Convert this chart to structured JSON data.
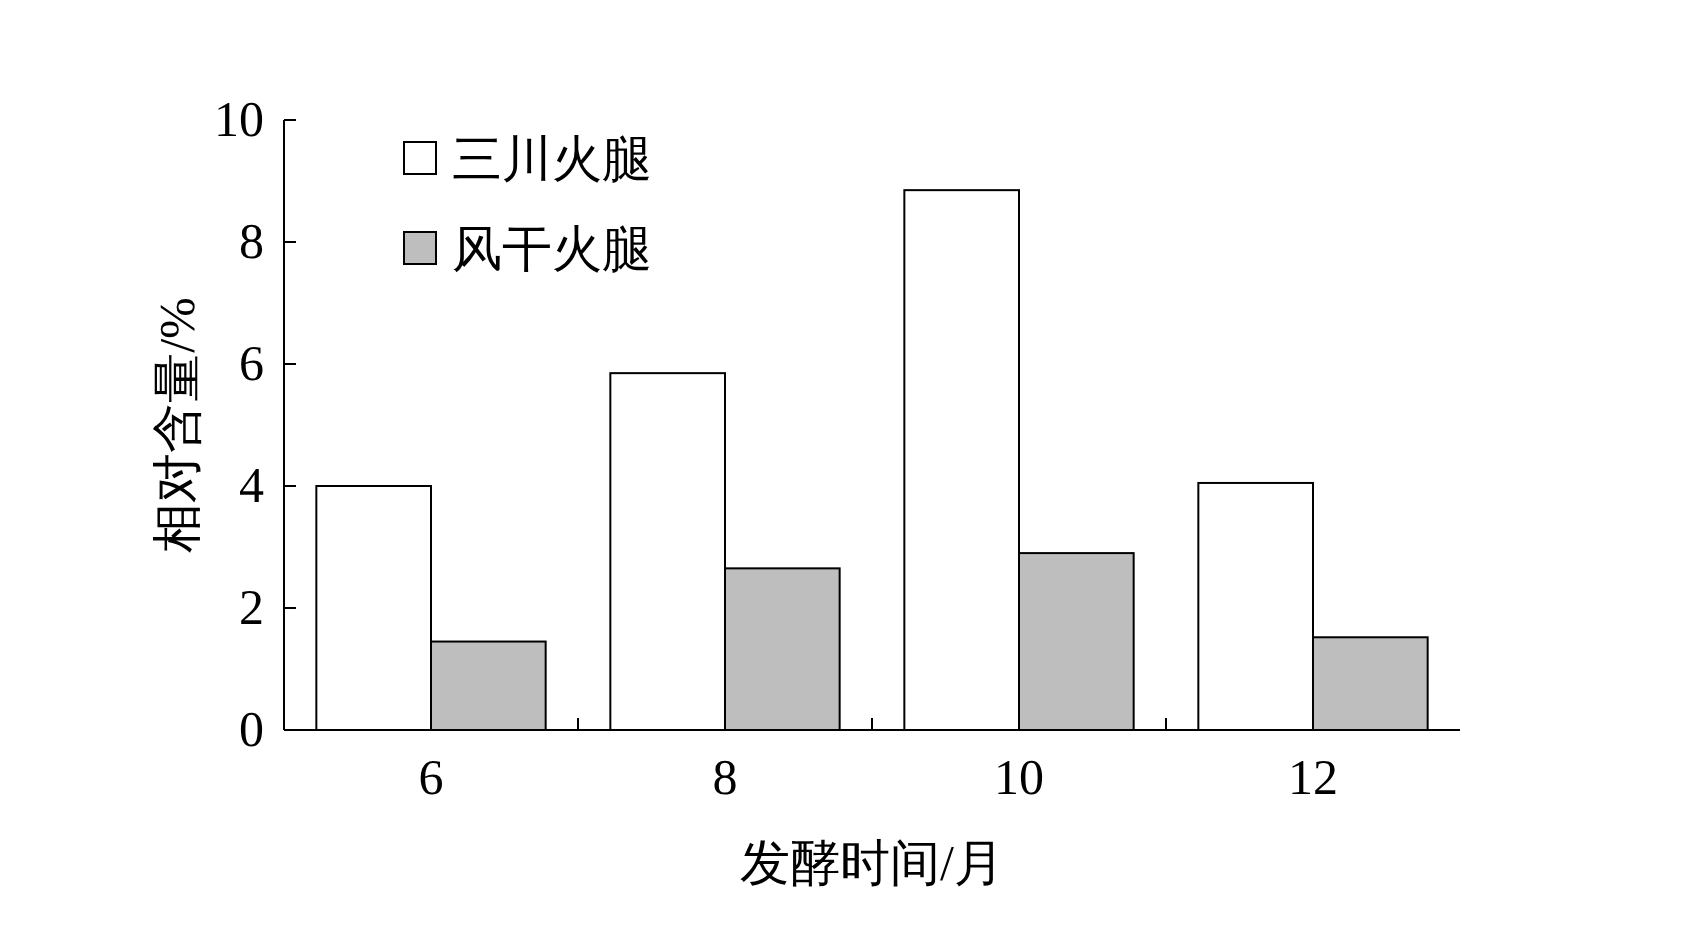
{
  "chart_data": {
    "type": "bar",
    "xlabel": "发酵时间/月",
    "ylabel": "相对含量/%",
    "categories": [
      "6",
      "8",
      "10",
      "12"
    ],
    "series": [
      {
        "name": "三川火腿",
        "color": "#ffffff",
        "values": [
          4.0,
          5.85,
          8.85,
          4.05
        ]
      },
      {
        "name": "风干火腿",
        "color": "#bebebe",
        "values": [
          1.45,
          2.65,
          2.9,
          1.52
        ]
      }
    ],
    "ylim": [
      0,
      10
    ],
    "yticks": [
      0,
      2,
      4,
      6,
      8,
      10
    ],
    "legend": "top left",
    "grid": false
  }
}
